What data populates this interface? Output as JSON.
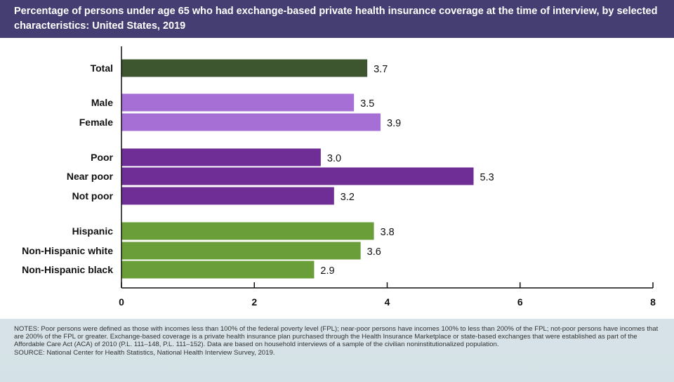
{
  "header": {
    "title": "Percentage of persons under age 65 who had exchange-based private health insurance coverage at the time of interview, by selected characteristics: United States, 2019"
  },
  "colors": {
    "header_bg": "#453e72",
    "total": "#3d5630",
    "sex": "#a56fd6",
    "poverty": "#6f2d96",
    "race": "#6a9e39"
  },
  "chart_data": {
    "type": "bar",
    "orientation": "horizontal",
    "categories": [
      "Total",
      "Male",
      "Female",
      "Poor",
      "Near poor",
      "Not poor",
      "Hispanic",
      "Non-Hispanic white",
      "Non-Hispanic black"
    ],
    "values": [
      3.7,
      3.5,
      3.9,
      3.0,
      5.3,
      3.2,
      3.8,
      3.6,
      2.9
    ],
    "value_labels": [
      "3.7",
      "3.5",
      "3.9",
      "3.0",
      "5.3",
      "3.2",
      "3.8",
      "3.6",
      "2.9"
    ],
    "groups": [
      "total",
      "sex",
      "sex",
      "poverty",
      "poverty",
      "poverty",
      "race",
      "race",
      "race"
    ],
    "xlim": [
      0,
      8
    ],
    "xticks": [
      0,
      2,
      4,
      6,
      8
    ],
    "xtick_labels": [
      "0",
      "2",
      "4",
      "6",
      "8"
    ],
    "grid": false
  },
  "notes": {
    "notes_text": "NOTES: Poor persons were defined as those with incomes less than 100% of the federal poverty level (FPL); near-poor persons have incomes 100% to less than 200% of the FPL; not-poor persons have incomes that are 200% of the FPL or greater. Exchange-based coverage is a private health insurance plan purchased through the Health Insurance Marketplace or state-based exchanges that were established as part of the Affordable Care Act (ACA) of 2010 (P.L. 111–148, P.L. 111–152). Data are based on household interviews of a sample of the civilian noninstitutionalized population.",
    "source_text": "SOURCE: National Center for Health Statistics, National Health Interview Survey, 2019."
  }
}
